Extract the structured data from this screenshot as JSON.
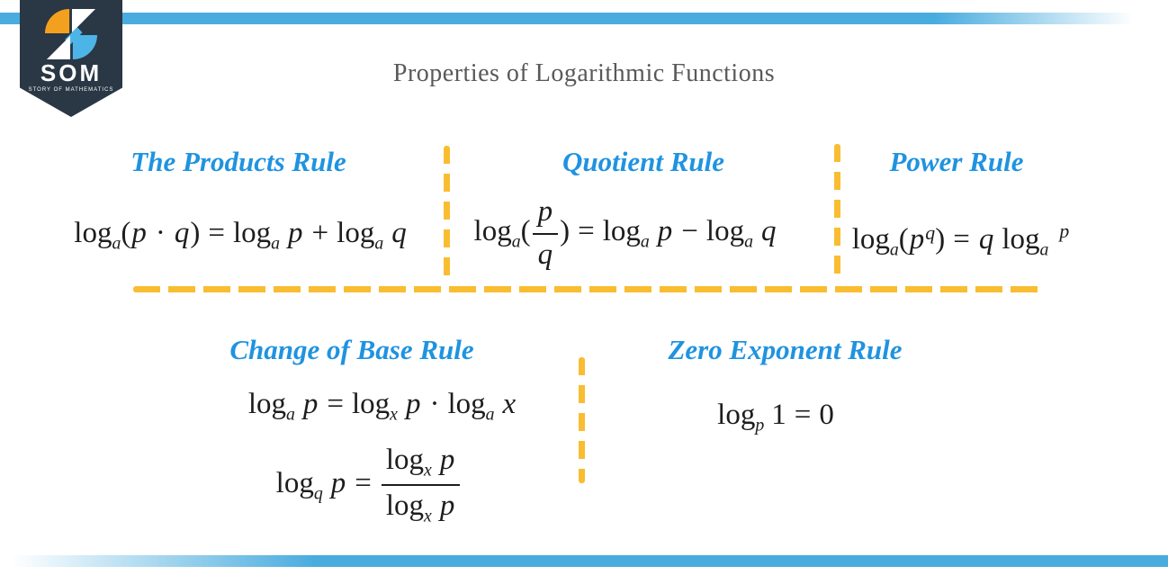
{
  "header": {
    "title": "Properties of Logarithmic Functions"
  },
  "logo": {
    "wordmark": "SOM",
    "tagline": "STORY OF MATHEMATICS"
  },
  "colors": {
    "bar_blue": "#49acde",
    "heading_blue": "#1f93e0",
    "dash_yellow": "#f9bd31",
    "badge_navy": "#2a3744",
    "logo_orange": "#f4a01f",
    "logo_blue": "#4db4e7",
    "formula_ink": "#1d1d1d",
    "title_gray": "#58595b"
  },
  "rules": {
    "products": {
      "title": "The Products Rule",
      "formula": [
        {
          "k": "r",
          "v": "log"
        },
        {
          "k": "s",
          "v": "a"
        },
        {
          "k": "r",
          "v": "("
        },
        {
          "k": "i",
          "v": "p"
        },
        {
          "k": "op",
          "v": "·"
        },
        {
          "k": "i",
          "v": "q"
        },
        {
          "k": "r",
          "v": ")"
        },
        {
          "k": "op",
          "v": "="
        },
        {
          "k": "r",
          "v": "log"
        },
        {
          "k": "s",
          "v": "a"
        },
        {
          "k": "sp"
        },
        {
          "k": "i",
          "v": "p"
        },
        {
          "k": "op",
          "v": "+"
        },
        {
          "k": "r",
          "v": "log"
        },
        {
          "k": "s",
          "v": "a"
        },
        {
          "k": "sp"
        },
        {
          "k": "i",
          "v": "q"
        }
      ]
    },
    "quotient": {
      "title": "Quotient Rule",
      "formula": [
        {
          "k": "r",
          "v": "log"
        },
        {
          "k": "s",
          "v": "a"
        },
        {
          "k": "r",
          "v": "("
        },
        {
          "k": "f",
          "n": [
            {
              "k": "i",
              "v": "p"
            }
          ],
          "d": [
            {
              "k": "i",
              "v": "q"
            }
          ]
        },
        {
          "k": "r",
          "v": ")"
        },
        {
          "k": "op",
          "v": "="
        },
        {
          "k": "r",
          "v": "log"
        },
        {
          "k": "s",
          "v": "a"
        },
        {
          "k": "sp"
        },
        {
          "k": "i",
          "v": "p"
        },
        {
          "k": "op",
          "v": "−"
        },
        {
          "k": "r",
          "v": "log"
        },
        {
          "k": "s",
          "v": "a"
        },
        {
          "k": "sp"
        },
        {
          "k": "i",
          "v": "q"
        }
      ]
    },
    "power": {
      "title": "Power Rule",
      "formula": [
        {
          "k": "r",
          "v": "log"
        },
        {
          "k": "s",
          "v": "a"
        },
        {
          "k": "r",
          "v": "("
        },
        {
          "k": "i",
          "v": "p"
        },
        {
          "k": "u",
          "v": "q"
        },
        {
          "k": "r",
          "v": ")"
        },
        {
          "k": "op",
          "v": "="
        },
        {
          "k": "i",
          "v": "q"
        },
        {
          "k": "sp"
        },
        {
          "k": "r",
          "v": "log"
        },
        {
          "k": "s",
          "v": "a"
        },
        {
          "k": "u2",
          "v": "p"
        }
      ]
    },
    "change_of_base": {
      "title": "Change of Base Rule",
      "formulas": [
        [
          {
            "k": "r",
            "v": "log"
          },
          {
            "k": "s",
            "v": "a"
          },
          {
            "k": "sp"
          },
          {
            "k": "i",
            "v": "p"
          },
          {
            "k": "op",
            "v": "="
          },
          {
            "k": "r",
            "v": "log"
          },
          {
            "k": "s",
            "v": "x"
          },
          {
            "k": "sp"
          },
          {
            "k": "i",
            "v": "p"
          },
          {
            "k": "op",
            "v": "·"
          },
          {
            "k": "r",
            "v": "log"
          },
          {
            "k": "s",
            "v": "a"
          },
          {
            "k": "sp"
          },
          {
            "k": "i",
            "v": "x"
          }
        ],
        [
          {
            "k": "r",
            "v": "log"
          },
          {
            "k": "s",
            "v": "q"
          },
          {
            "k": "sp"
          },
          {
            "k": "i",
            "v": "p"
          },
          {
            "k": "op",
            "v": "="
          },
          {
            "k": "f",
            "n": [
              {
                "k": "r",
                "v": "log"
              },
              {
                "k": "s",
                "v": "x"
              },
              {
                "k": "sp"
              },
              {
                "k": "i",
                "v": "p"
              }
            ],
            "d": [
              {
                "k": "r",
                "v": "log"
              },
              {
                "k": "s",
                "v": "x"
              },
              {
                "k": "sp"
              },
              {
                "k": "i",
                "v": "p"
              }
            ]
          }
        ]
      ]
    },
    "zero_exponent": {
      "title": "Zero Exponent Rule",
      "formula": [
        {
          "k": "r",
          "v": "log"
        },
        {
          "k": "s",
          "v": "p"
        },
        {
          "k": "sp"
        },
        {
          "k": "r",
          "v": "1"
        },
        {
          "k": "op",
          "v": "="
        },
        {
          "k": "r",
          "v": "0"
        }
      ]
    }
  }
}
